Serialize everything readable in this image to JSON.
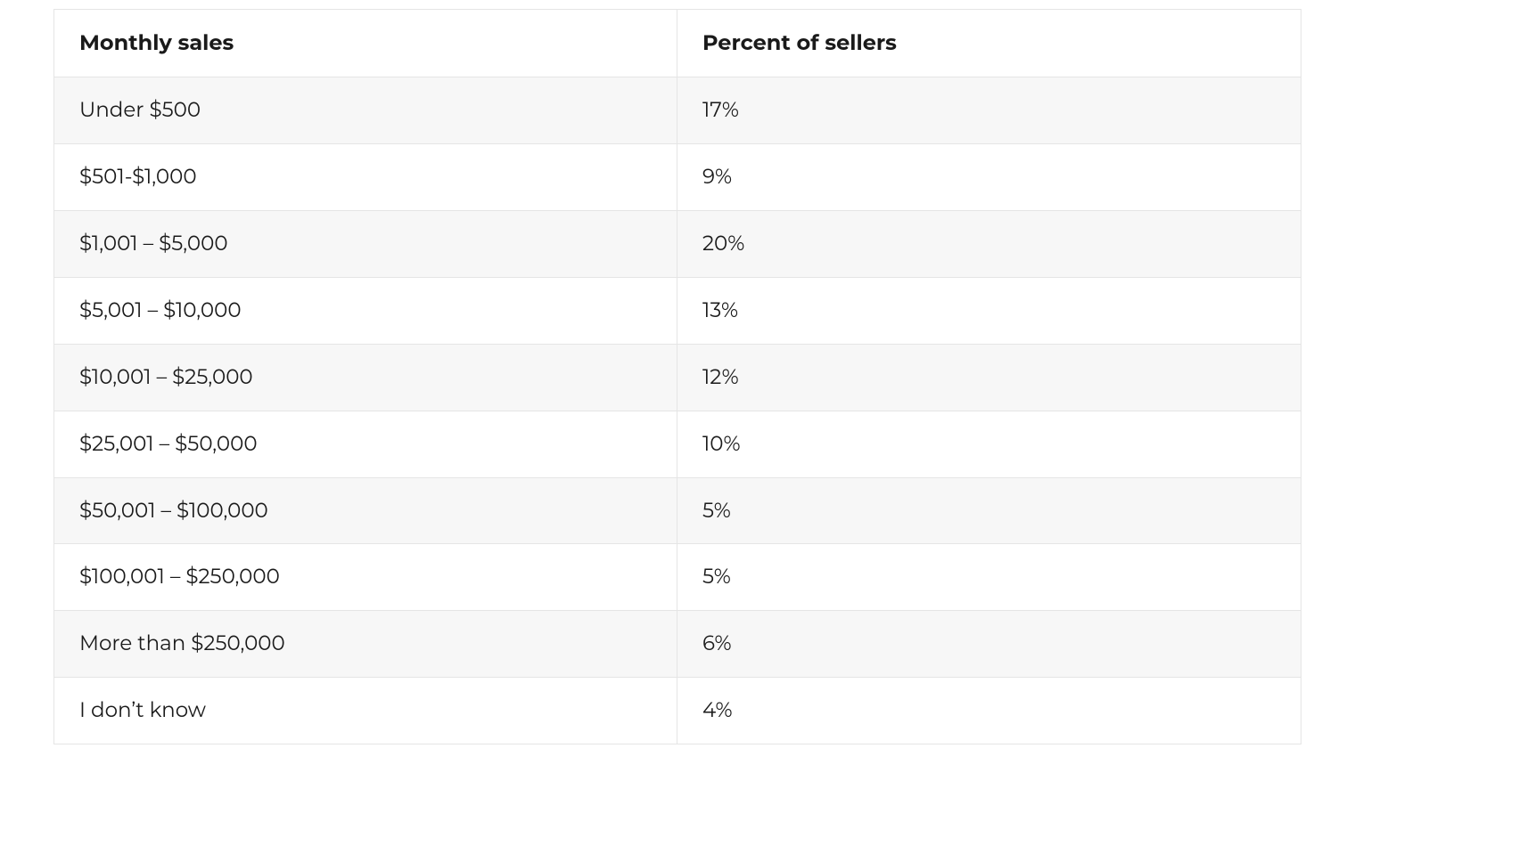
{
  "table": {
    "type": "table",
    "border_color": "#e5e5e5",
    "row_alt_background": "#f7f7f7",
    "background_color": "#ffffff",
    "text_color": "#1a1a1a",
    "header_fontsize_pt": 18,
    "body_fontsize_pt": 17,
    "header_fontweight": 700,
    "body_fontweight": 400,
    "column_widths_percent": [
      50,
      50
    ],
    "columns": [
      "Monthly sales",
      "Percent of sellers"
    ],
    "rows": [
      [
        "Under $500",
        "17%"
      ],
      [
        "$501-$1,000",
        "9%"
      ],
      [
        "$1,001 – $5,000",
        "20%"
      ],
      [
        "$5,001 – $10,000",
        "13%"
      ],
      [
        "$10,001 – $25,000",
        "12%"
      ],
      [
        "$25,001 – $50,000",
        "10%"
      ],
      [
        "$50,001 – $100,000",
        "5%"
      ],
      [
        "$100,001 – $250,000",
        "5%"
      ],
      [
        "More than $250,000",
        "6%"
      ],
      [
        "I don’t know",
        "4%"
      ]
    ]
  }
}
